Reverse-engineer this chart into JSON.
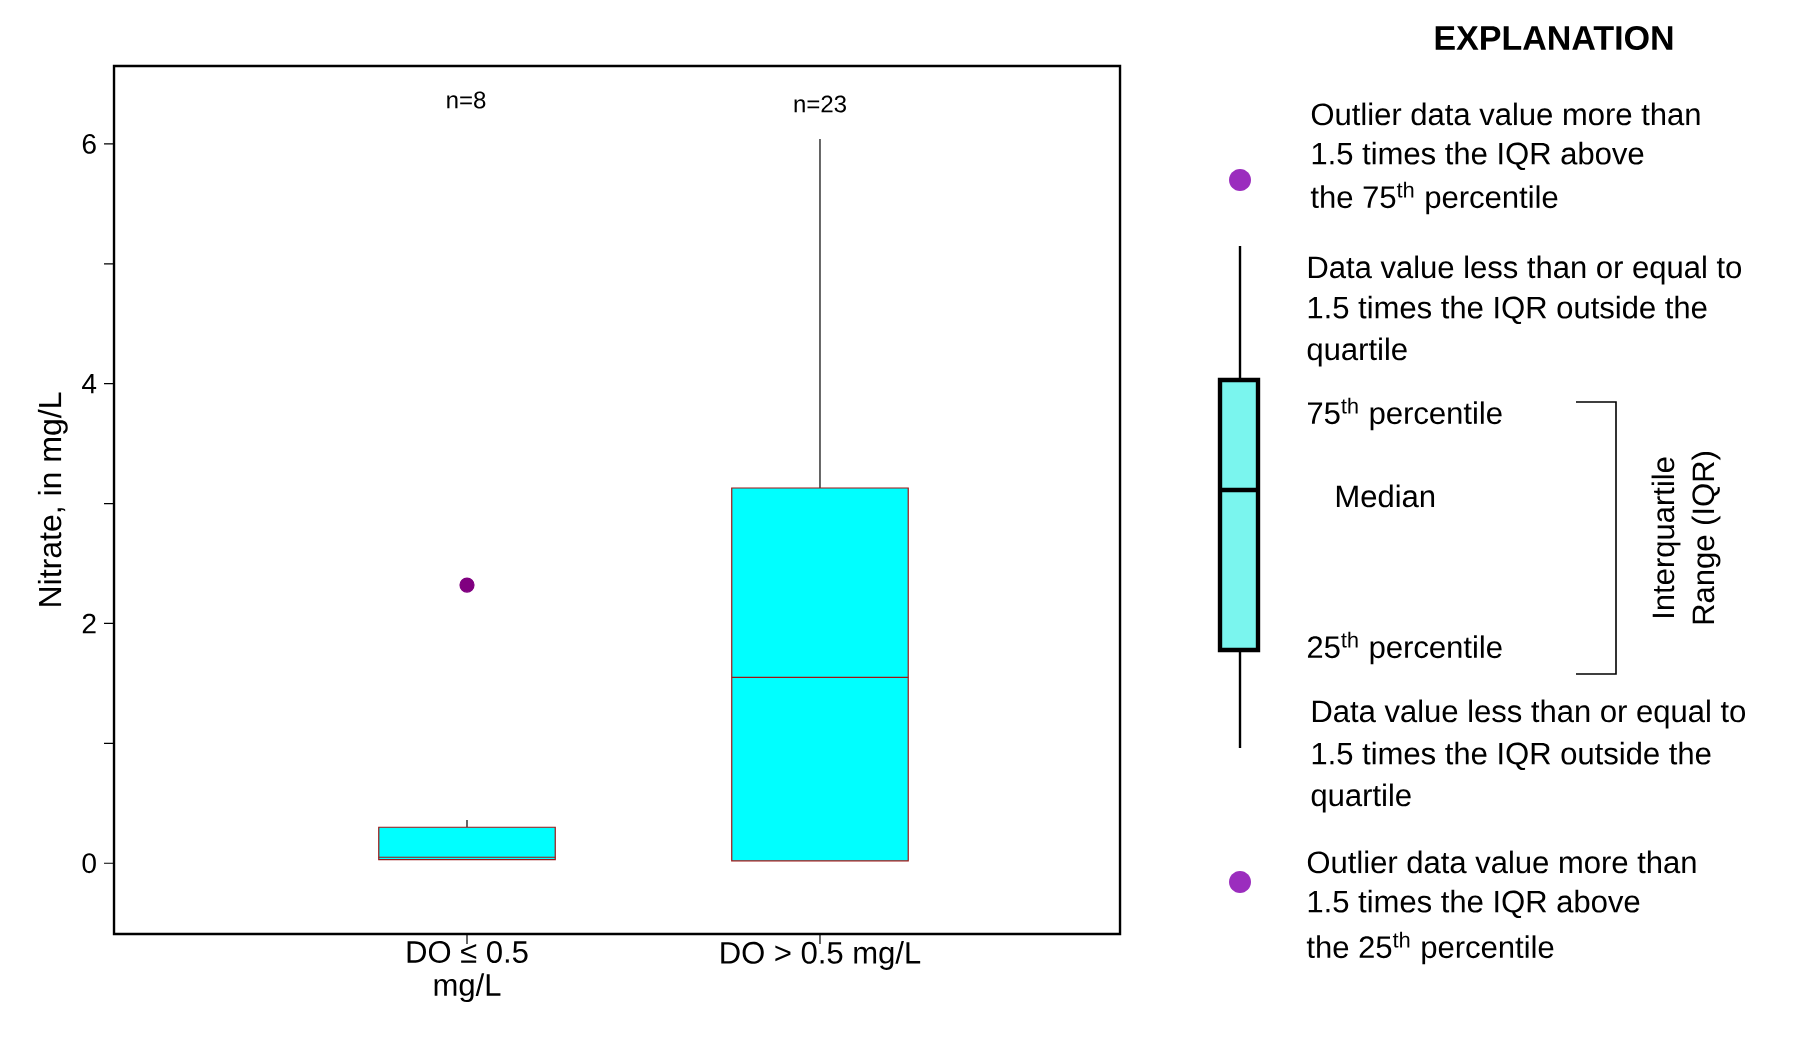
{
  "chart_data": {
    "type": "box",
    "categories": [
      "DO ≤ 0.5 mg/L",
      "DO > 0.5 mg/L"
    ],
    "ylabel": "Nitrate, in mg/L",
    "ylim": [
      -0.59,
      6.65
    ],
    "yticks": [
      0,
      {
        "value": 1,
        "label": null
      },
      2,
      {
        "value": 3,
        "label": null
      },
      4,
      {
        "value": 5,
        "label": null
      },
      6
    ],
    "color": "#00ffff",
    "boxes": [
      {
        "low": 0.03,
        "q1": 0.03,
        "median": 0.05,
        "q3": 0.3,
        "high": 0.36,
        "outliers": [
          2.32
        ]
      },
      {
        "low": 0.02,
        "q1": 0.02,
        "median": 1.55,
        "q3": 3.13,
        "high": 6.04
      }
    ],
    "annotations": [
      "n=8",
      "n=23",
      "EXPLANATION",
      "Outlier data value more than",
      "1.5 times the IQR above",
      "the 75$^{th}$ percentile",
      "Data value less than or equal to",
      "1.5 times the IQR outside the",
      "quartile",
      "75$^{th}$ percentile",
      "Median",
      "25$^{th}$ percentile",
      "Interquartile",
      "Range (IQR)",
      "Data value less than or equal to",
      "1.5 times the IQR outside the",
      "quartile",
      "Outlier data value more than",
      "1.5 times the IQR above",
      "the 25$^{th}$ percentile"
    ]
  }
}
